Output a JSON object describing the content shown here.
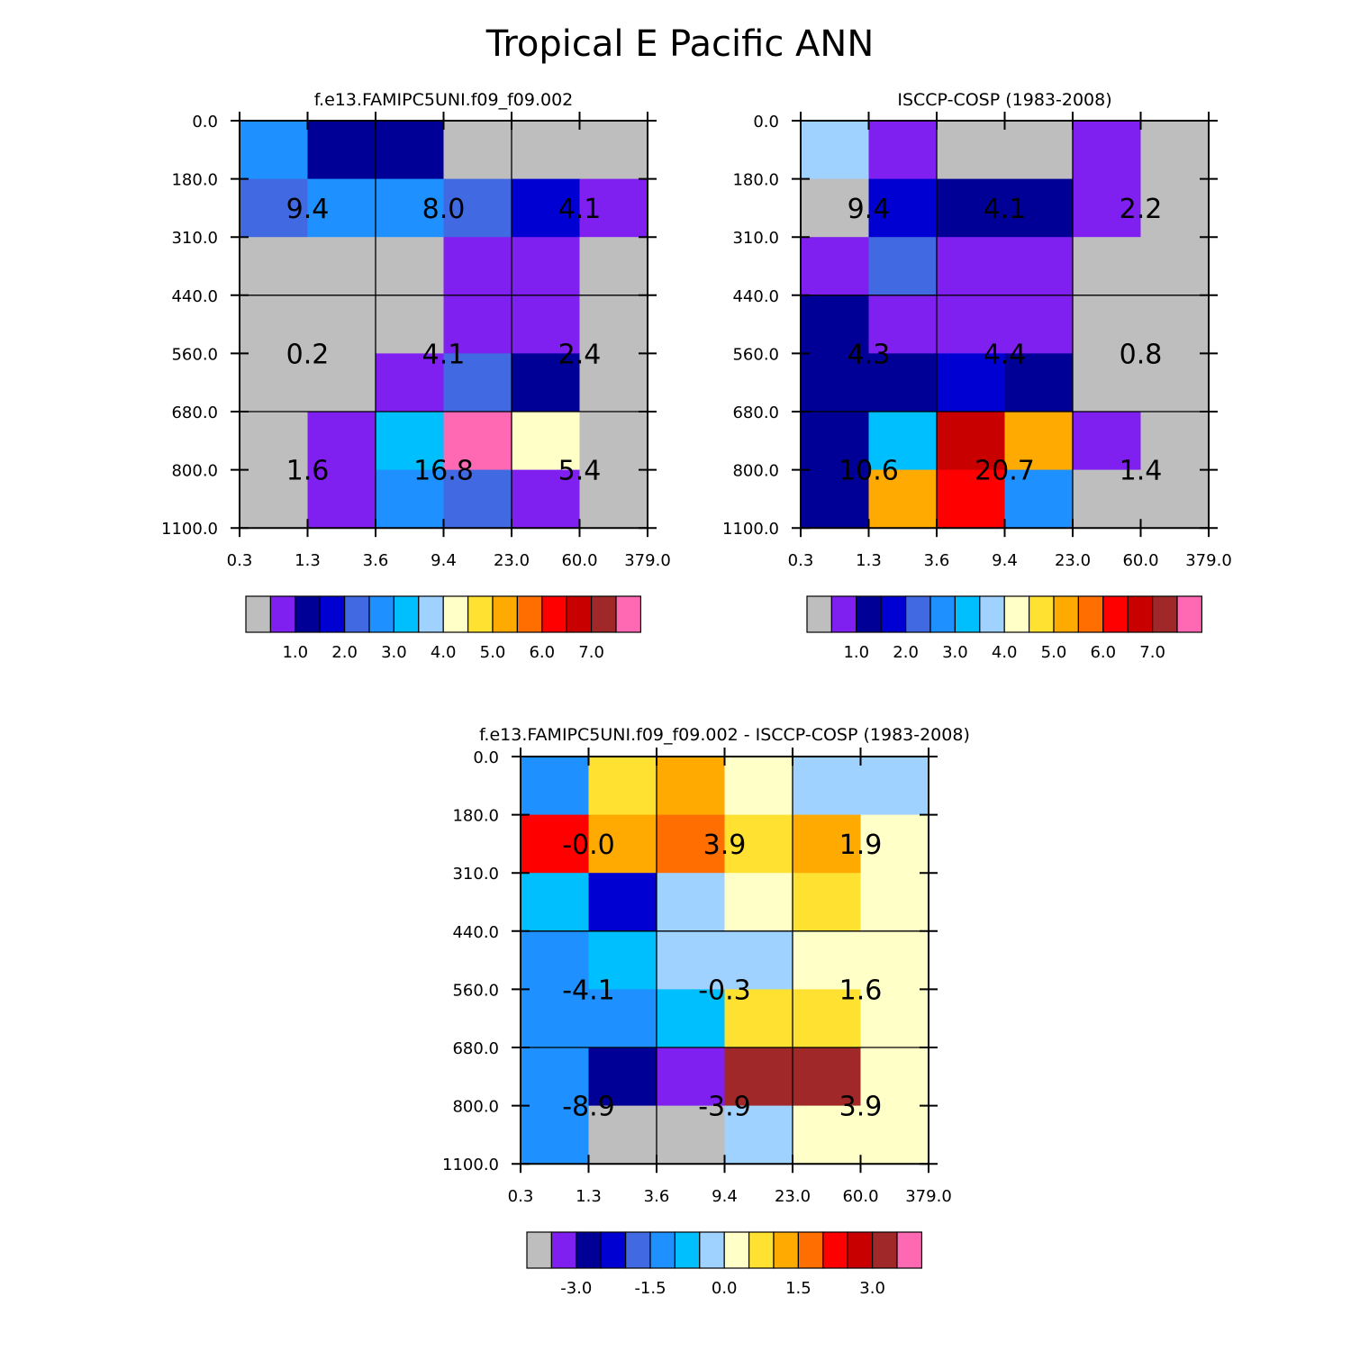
{
  "figure_title": "Tropical E Pacific ANN",
  "palette": {
    "gray": "#bebebe",
    "purple": "#8020f0",
    "navy": "#000096",
    "blue": "#0000d2",
    "royal": "#4169e1",
    "dodger": "#1e90ff",
    "deepsky": "#00bfff",
    "lightsky": "#a0d2ff",
    "cream": "#ffffc8",
    "gold": "#ffe132",
    "orange": "#ffaa00",
    "darkorange": "#ff6e00",
    "red": "#ff0000",
    "crimson": "#c80000",
    "brown": "#a02828",
    "pink": "#ff69b4"
  },
  "colorbar_keys": [
    "gray",
    "purple",
    "navy",
    "blue",
    "royal",
    "dodger",
    "deepsky",
    "lightsky",
    "cream",
    "gold",
    "orange",
    "darkorange",
    "red",
    "crimson",
    "brown",
    "pink"
  ],
  "chart_data": [
    {
      "type": "heatmap",
      "title": "f.e13.FAMIPC5UNI.f09_f09.002",
      "x_tick_labels": [
        "0.3",
        "1.3",
        "3.6",
        "9.4",
        "23.0",
        "60.0",
        "379.0"
      ],
      "y_tick_labels": [
        "0.0",
        "180.0",
        "310.0",
        "440.0",
        "560.0",
        "680.0",
        "800.0",
        "1100.0"
      ],
      "cells": [
        [
          "dodger",
          "navy",
          "navy",
          "gray",
          "gray",
          "gray"
        ],
        [
          "royal",
          "dodger",
          "dodger",
          "royal",
          "blue",
          "purple"
        ],
        [
          "gray",
          "gray",
          "gray",
          "purple",
          "purple",
          "gray"
        ],
        [
          "gray",
          "gray",
          "gray",
          "purple",
          "purple",
          "gray"
        ],
        [
          "gray",
          "gray",
          "purple",
          "royal",
          "navy",
          "gray"
        ],
        [
          "gray",
          "purple",
          "deepsky",
          "pink",
          "cream",
          "gray"
        ],
        [
          "gray",
          "purple",
          "dodger",
          "royal",
          "purple",
          "gray"
        ]
      ],
      "group_labels": [
        [
          "9.4",
          "8.0",
          "4.1"
        ],
        [
          "0.2",
          "4.1",
          "2.4"
        ],
        [
          "1.6",
          "16.8",
          "5.4"
        ]
      ],
      "colorbar_labels": [
        "1.0",
        "2.0",
        "3.0",
        "4.0",
        "5.0",
        "6.0",
        "7.0"
      ]
    },
    {
      "type": "heatmap",
      "title": "ISCCP-COSP (1983-2008)",
      "x_tick_labels": [
        "0.3",
        "1.3",
        "3.6",
        "9.4",
        "23.0",
        "60.0",
        "379.0"
      ],
      "y_tick_labels": [
        "0.0",
        "180.0",
        "310.0",
        "440.0",
        "560.0",
        "680.0",
        "800.0",
        "1100.0"
      ],
      "cells": [
        [
          "lightsky",
          "purple",
          "gray",
          "gray",
          "purple",
          "gray"
        ],
        [
          "gray",
          "blue",
          "navy",
          "navy",
          "purple",
          "gray"
        ],
        [
          "purple",
          "royal",
          "purple",
          "purple",
          "gray",
          "gray"
        ],
        [
          "navy",
          "purple",
          "purple",
          "purple",
          "gray",
          "gray"
        ],
        [
          "navy",
          "navy",
          "blue",
          "navy",
          "gray",
          "gray"
        ],
        [
          "navy",
          "deepsky",
          "crimson",
          "orange",
          "purple",
          "gray"
        ],
        [
          "navy",
          "orange",
          "red",
          "dodger",
          "gray",
          "gray"
        ]
      ],
      "group_labels": [
        [
          "9.4",
          "4.1",
          "2.2"
        ],
        [
          "4.3",
          "4.4",
          "0.8"
        ],
        [
          "10.6",
          "20.7",
          "1.4"
        ]
      ],
      "colorbar_labels": [
        "1.0",
        "2.0",
        "3.0",
        "4.0",
        "5.0",
        "6.0",
        "7.0"
      ]
    },
    {
      "type": "heatmap",
      "title": "f.e13.FAMIPC5UNI.f09_f09.002 - ISCCP-COSP (1983-2008)",
      "x_tick_labels": [
        "0.3",
        "1.3",
        "3.6",
        "9.4",
        "23.0",
        "60.0",
        "379.0"
      ],
      "y_tick_labels": [
        "0.0",
        "180.0",
        "310.0",
        "440.0",
        "560.0",
        "680.0",
        "800.0",
        "1100.0"
      ],
      "cells": [
        [
          "dodger",
          "gold",
          "orange",
          "cream",
          "lightsky",
          "lightsky"
        ],
        [
          "red",
          "orange",
          "darkorange",
          "gold",
          "orange",
          "cream"
        ],
        [
          "deepsky",
          "blue",
          "lightsky",
          "cream",
          "gold",
          "cream"
        ],
        [
          "dodger",
          "deepsky",
          "lightsky",
          "lightsky",
          "cream",
          "cream"
        ],
        [
          "dodger",
          "dodger",
          "deepsky",
          "gold",
          "gold",
          "cream"
        ],
        [
          "dodger",
          "navy",
          "purple",
          "brown",
          "brown",
          "cream"
        ],
        [
          "dodger",
          "gray",
          "gray",
          "lightsky",
          "cream",
          "cream"
        ]
      ],
      "group_labels": [
        [
          "-0.0",
          "3.9",
          "1.9"
        ],
        [
          "-4.1",
          "-0.3",
          "1.6"
        ],
        [
          "-8.9",
          "-3.9",
          "3.9"
        ]
      ],
      "colorbar_labels": [
        "-3.0",
        "-1.5",
        "0.0",
        "1.5",
        "3.0"
      ]
    }
  ]
}
